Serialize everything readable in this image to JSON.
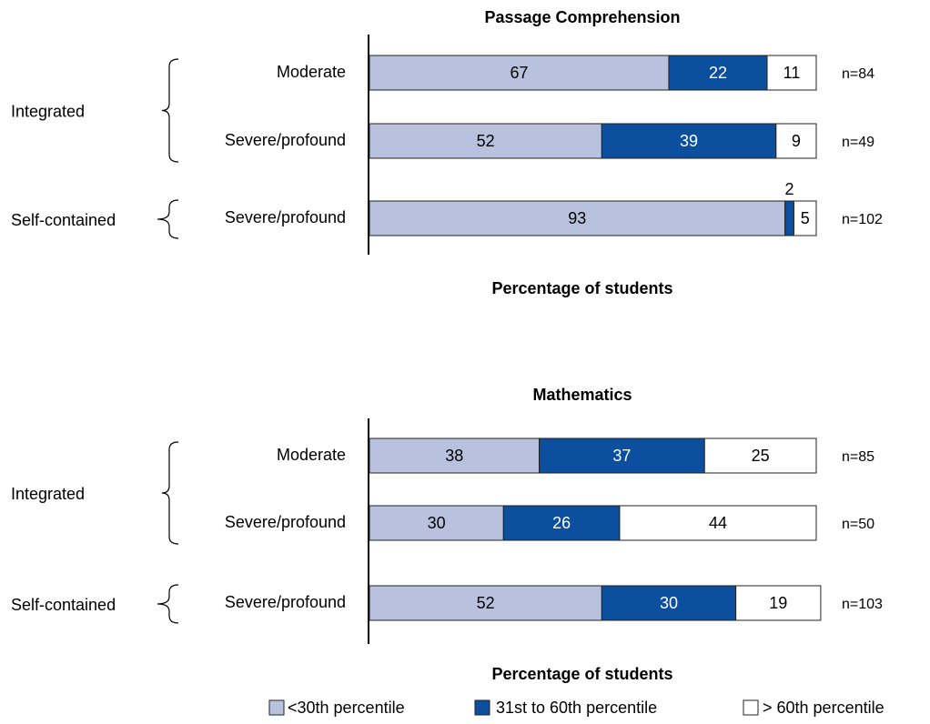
{
  "chart_data": [
    {
      "type": "bar",
      "orientation": "horizontal",
      "stacked": true,
      "title": "Passage Comprehension",
      "x_label": "Percentage of students",
      "categories": [
        "Moderate",
        "Severe/profound",
        "Severe/profound"
      ],
      "category_groups": [
        "Integrated",
        "Integrated",
        "Self-contained"
      ],
      "annotations": [
        "n=84",
        "n=49",
        "n=102"
      ],
      "xlim": [
        0,
        100
      ],
      "series": [
        {
          "color": "#b8c2de",
          "label_color": "#000000",
          "values": [
            67,
            52,
            93
          ]
        },
        {
          "color": "#0b4f9e",
          "label_color": "#ffffff",
          "values": [
            22,
            39,
            2
          ]
        },
        {
          "color": "#ffffff",
          "label_color": "#000000",
          "values": [
            11,
            9,
            5
          ]
        }
      ]
    },
    {
      "type": "bar",
      "orientation": "horizontal",
      "stacked": true,
      "title": "Mathematics",
      "x_label": "Percentage of students",
      "categories": [
        "Moderate",
        "Severe/profound",
        "Severe/profound"
      ],
      "category_groups": [
        "Integrated",
        "Integrated",
        "Self-contained"
      ],
      "annotations": [
        "n=85",
        "n=50",
        "n=103"
      ],
      "xlim": [
        0,
        100
      ],
      "series": [
        {
          "name": "<30th percentile",
          "color": "#b8c2de",
          "label_color": "#000000",
          "values": [
            38,
            30,
            52
          ]
        },
        {
          "name": "31st to 60th percentile",
          "color": "#0b4f9e",
          "label_color": "#ffffff",
          "values": [
            37,
            26,
            30
          ]
        },
        {
          "name": "> 60th percentile",
          "color": "#ffffff",
          "label_color": "#000000",
          "values": [
            25,
            44,
            19
          ]
        }
      ]
    }
  ]
}
